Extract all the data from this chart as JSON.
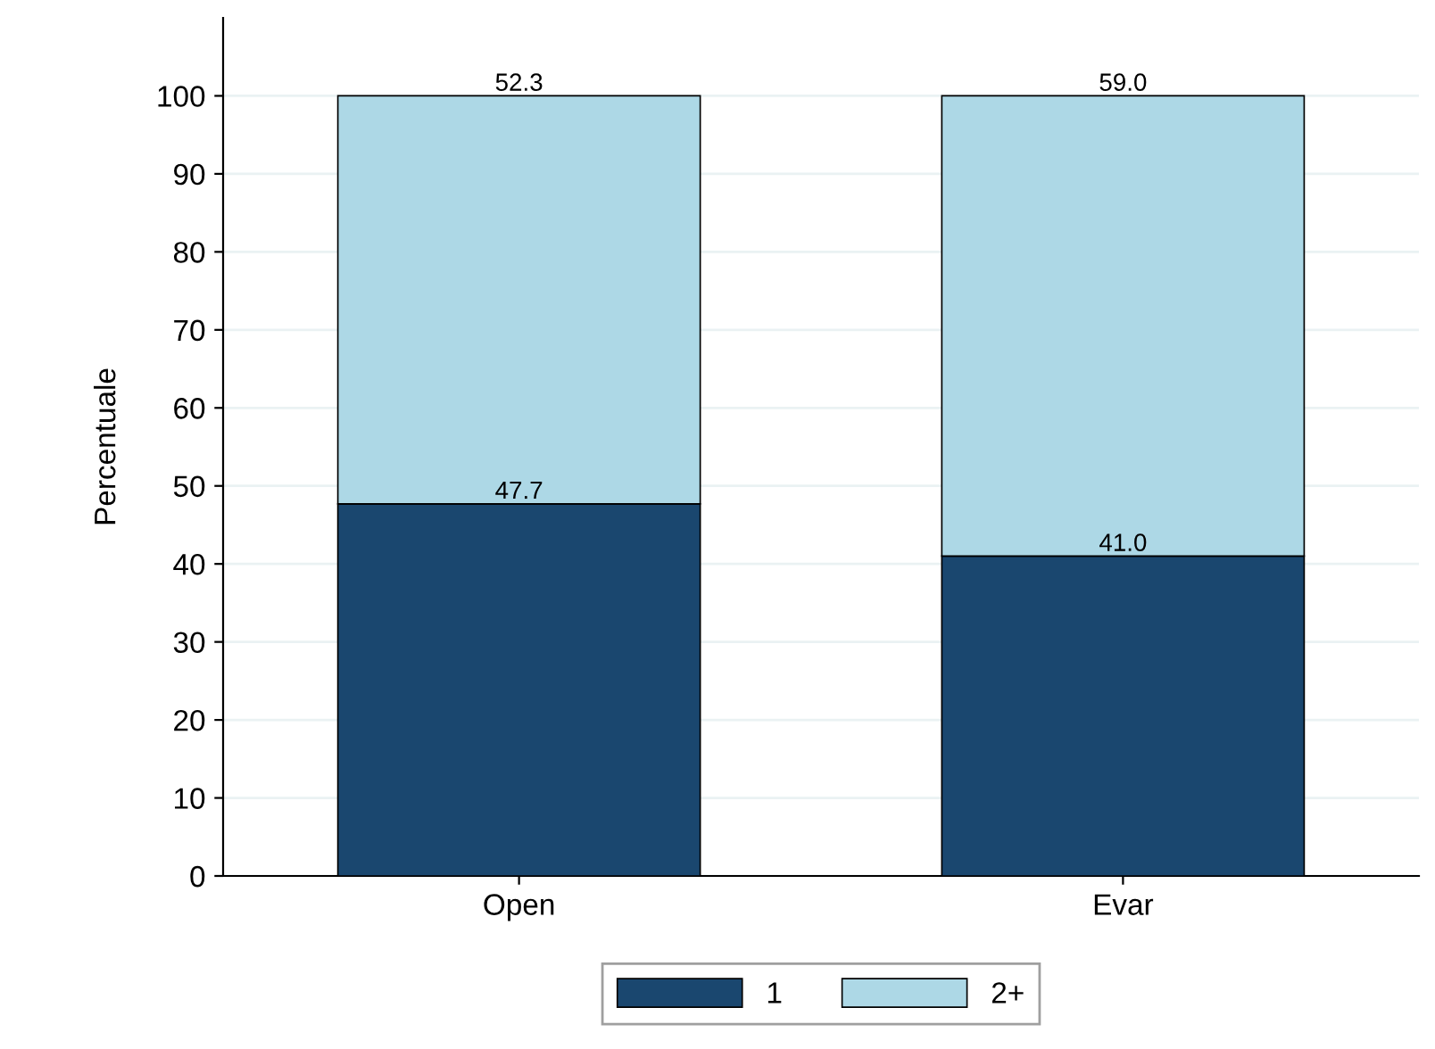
{
  "chart_data": {
    "type": "bar",
    "stacked": true,
    "categories": [
      "Open",
      "Evar"
    ],
    "series": [
      {
        "name": "1",
        "color": "#1a476f",
        "values": [
          47.7,
          41.0
        ],
        "value_labels": [
          "47.7",
          "41.0"
        ]
      },
      {
        "name": "2+",
        "color": "#add8e6",
        "values": [
          52.3,
          59.0
        ],
        "value_labels": [
          "52.3",
          "59.0"
        ]
      }
    ],
    "ylabel": "Percentuale",
    "ylim": [
      0,
      110
    ],
    "yticks": [
      0,
      10,
      20,
      30,
      40,
      50,
      60,
      70,
      80,
      90,
      100
    ],
    "grid": "y",
    "legend": "bottom"
  }
}
